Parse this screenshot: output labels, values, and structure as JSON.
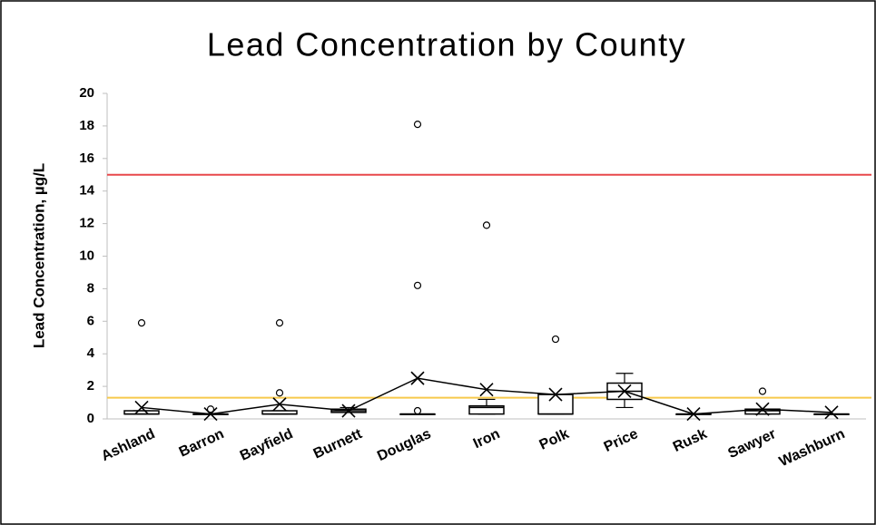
{
  "chart_data": {
    "type": "box",
    "title": "Lead Concentration by County",
    "y_label": "Lead Concentration, µg/L",
    "categories": [
      "Ashland",
      "Barron",
      "Bayfield",
      "Burnett",
      "Douglas",
      "Iron",
      "Polk",
      "Price",
      "Rusk",
      "Sawyer",
      "Washburn"
    ],
    "boxes": [
      {
        "min": 0.3,
        "q1": 0.3,
        "median": 0.3,
        "q3": 0.5,
        "max": 0.5
      },
      {
        "min": 0.3,
        "q1": 0.3,
        "median": 0.3,
        "q3": 0.3,
        "max": 0.3
      },
      {
        "min": 0.3,
        "q1": 0.3,
        "median": 0.3,
        "q3": 0.5,
        "max": 0.5
      },
      {
        "min": 0.4,
        "q1": 0.4,
        "median": 0.5,
        "q3": 0.6,
        "max": 0.7
      },
      {
        "min": 0.3,
        "q1": 0.3,
        "median": 0.3,
        "q3": 0.3,
        "max": 0.3
      },
      {
        "min": 0.3,
        "q1": 0.3,
        "median": 0.7,
        "q3": 0.8,
        "max": 1.2
      },
      {
        "min": 0.3,
        "q1": 0.3,
        "median": 0.3,
        "q3": 1.5,
        "max": 1.5
      },
      {
        "min": 0.7,
        "q1": 1.2,
        "median": 1.7,
        "q3": 2.2,
        "max": 2.8
      },
      {
        "min": 0.3,
        "q1": 0.3,
        "median": 0.3,
        "q3": 0.3,
        "max": 0.3
      },
      {
        "min": 0.3,
        "q1": 0.3,
        "median": 0.5,
        "q3": 0.6,
        "max": 0.6
      },
      {
        "min": 0.3,
        "q1": 0.3,
        "median": 0.3,
        "q3": 0.3,
        "max": 0.3
      }
    ],
    "means": [
      0.7,
      0.3,
      0.9,
      0.5,
      2.5,
      1.8,
      1.5,
      1.7,
      0.3,
      0.6,
      0.4
    ],
    "outliers": [
      [
        5.9
      ],
      [
        0.6
      ],
      [
        5.9,
        1.6
      ],
      [],
      [
        18.1,
        8.2,
        0.5
      ],
      [
        11.9
      ],
      [
        4.9
      ],
      [],
      [],
      [
        1.7
      ],
      []
    ],
    "box_color": "#ffffff",
    "line_color": "#000000",
    "reference_lines": [
      {
        "value": 15,
        "color": "#e8484b"
      },
      {
        "value": 1.3,
        "color": "#f6c94c"
      }
    ],
    "ylim": [
      0,
      20
    ],
    "yticks": [
      0,
      2,
      4,
      6,
      8,
      10,
      12,
      14,
      16,
      18,
      20
    ],
    "grid": false
  }
}
